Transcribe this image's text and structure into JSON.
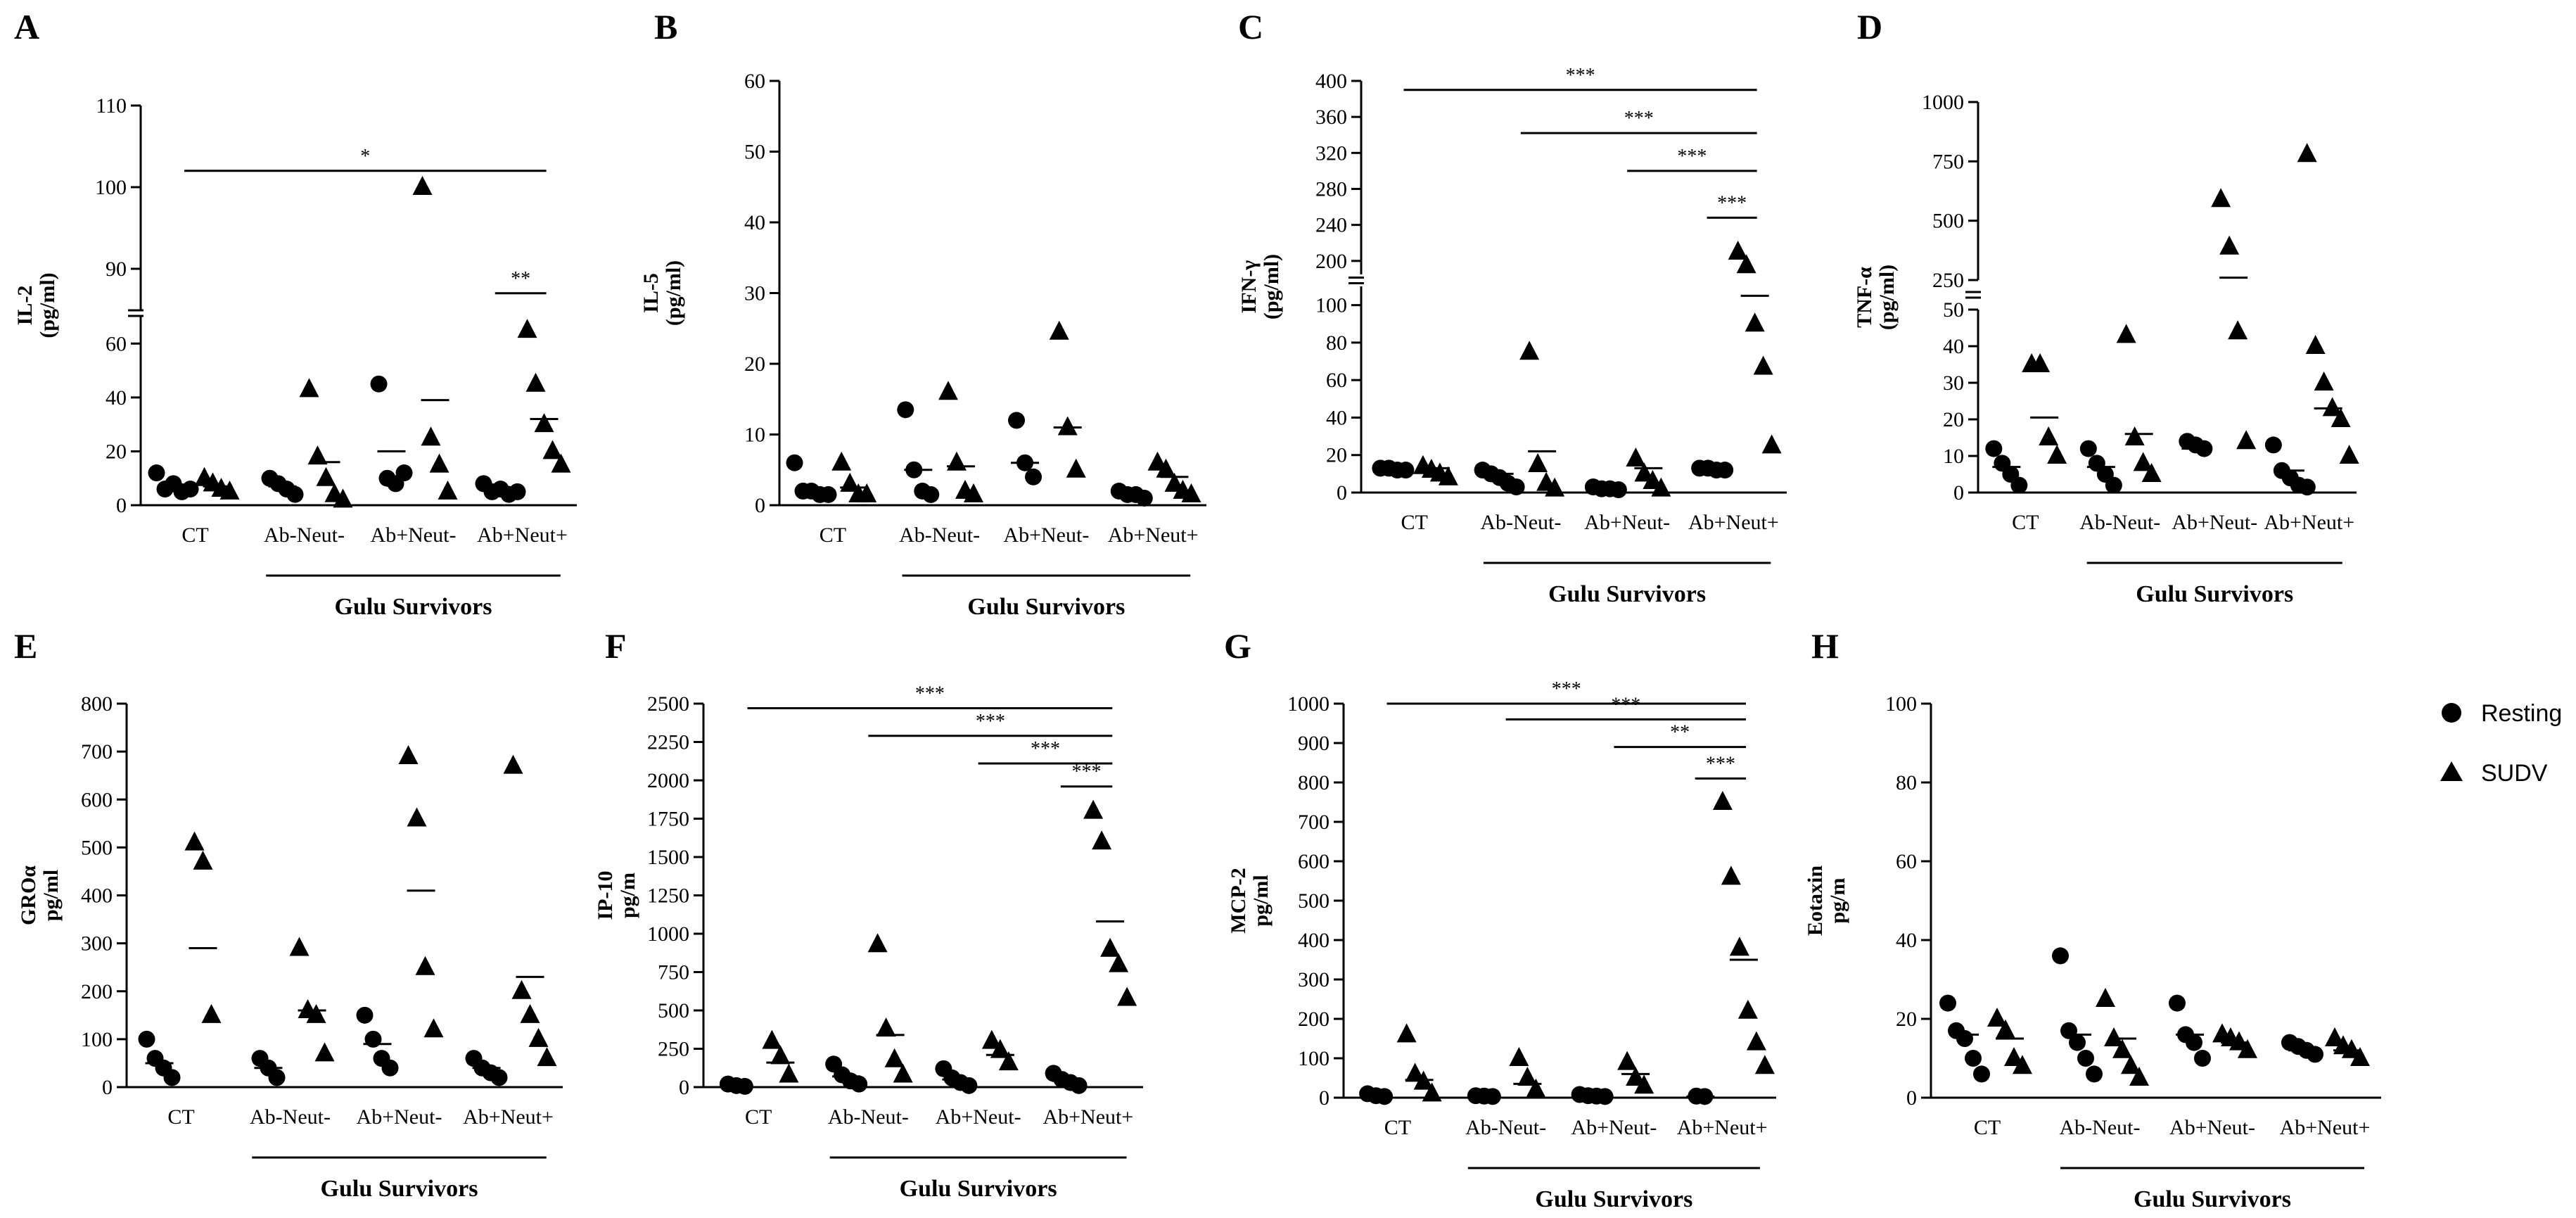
{
  "legend": {
    "resting": "Resting",
    "sudv": "SUDV",
    "resting_icon": "filled-circle-icon",
    "sudv_icon": "filled-triangle-icon"
  },
  "chart_data": [
    {
      "panel": "A",
      "type": "scatter",
      "ylabel": [
        "IL-2",
        "(pg/ml)"
      ],
      "categories": [
        "CT",
        "Ab-Neut-",
        "Ab+Neut-",
        "Ab+Neut+"
      ],
      "group_label": "Gulu Survivors",
      "broken_axis": true,
      "segments": [
        {
          "range": [
            0,
            70
          ],
          "ticks": [
            0,
            20,
            40,
            60
          ]
        },
        {
          "range": [
            85,
            110
          ],
          "ticks": [
            90,
            100,
            110
          ]
        }
      ],
      "series": [
        {
          "name": "Resting",
          "marker": "circle",
          "values": [
            [
              12,
              6,
              8,
              5,
              6
            ],
            [
              10,
              8,
              6,
              4
            ],
            [
              45,
              10,
              8,
              12
            ],
            [
              8,
              5,
              6,
              4,
              5
            ]
          ],
          "means": [
            7,
            7,
            20,
            5
          ]
        },
        {
          "name": "SUDV",
          "marker": "triangle",
          "values": [
            [
              10,
              8,
              6,
              5
            ],
            [
              43,
              18,
              10,
              4,
              2
            ],
            [
              100,
              25,
              15,
              5
            ],
            [
              65,
              45,
              30,
              20,
              15
            ]
          ],
          "means": [
            7,
            16,
            39,
            32
          ]
        }
      ],
      "significance": [
        {
          "from": 0,
          "to": 3,
          "label": "*",
          "y": 102
        },
        {
          "from": 2.75,
          "to": 3,
          "label": "**",
          "y": 87
        }
      ]
    },
    {
      "panel": "B",
      "type": "scatter",
      "ylabel": [
        "IL-5",
        "(pg/ml)"
      ],
      "categories": [
        "CT",
        "Ab-Neut-",
        "Ab+Neut-",
        "Ab+Neut+"
      ],
      "group_label": "Gulu Survivors",
      "broken_axis": false,
      "segments": [
        {
          "range": [
            0,
            60
          ],
          "ticks": [
            0,
            10,
            20,
            30,
            40,
            50,
            60
          ]
        }
      ],
      "series": [
        {
          "name": "Resting",
          "marker": "circle",
          "values": [
            [
              6,
              2,
              2,
              1.5,
              1.5
            ],
            [
              13.5,
              5,
              2,
              1.5
            ],
            [
              12,
              6,
              4
            ],
            [
              2,
              1.5,
              1.5,
              1
            ]
          ],
          "means": [
            2,
            5,
            6,
            2
          ]
        },
        {
          "name": "SUDV",
          "marker": "triangle",
          "values": [
            [
              6,
              3,
              1.5,
              1.5
            ],
            [
              16,
              6,
              2,
              1.5
            ],
            [
              24.5,
              11,
              5
            ],
            [
              6,
              5,
              3,
              2,
              1.5
            ]
          ],
          "means": [
            2.5,
            5.5,
            11,
            4
          ]
        }
      ],
      "significance": []
    },
    {
      "panel": "C",
      "type": "scatter",
      "ylabel": [
        "IFN-γ",
        "(pg/ml)"
      ],
      "categories": [
        "CT",
        "Ab-Neut-",
        "Ab+Neut-",
        "Ab+Neut+"
      ],
      "group_label": "Gulu Survivors",
      "broken_axis": true,
      "segments": [
        {
          "range": [
            0,
            110
          ],
          "ticks": [
            0,
            20,
            40,
            60,
            80,
            100
          ]
        },
        {
          "range": [
            185,
            400
          ],
          "ticks": [
            200,
            240,
            280,
            320,
            360,
            400
          ]
        }
      ],
      "series": [
        {
          "name": "Resting",
          "marker": "circle",
          "values": [
            [
              13,
              13,
              12,
              12
            ],
            [
              12,
              10,
              8,
              5,
              3
            ],
            [
              3,
              2,
              2,
              1.5
            ],
            [
              13,
              13,
              12,
              12
            ]
          ],
          "means": [
            13,
            10,
            2,
            13
          ]
        },
        {
          "name": "SUDV",
          "marker": "triangle",
          "values": [
            [
              14,
              12,
              10,
              8
            ],
            [
              75,
              15,
              5,
              2
            ],
            [
              18,
              10,
              6,
              2
            ],
            [
              210,
              195,
              90,
              67,
              25
            ]
          ],
          "means": [
            13,
            22,
            13,
            105
          ]
        }
      ],
      "significance": [
        {
          "from": 0,
          "to": 3,
          "label": "***",
          "y": 390
        },
        {
          "from": 1,
          "to": 3,
          "label": "***",
          "y": 342
        },
        {
          "from": 2,
          "to": 3,
          "label": "***",
          "y": 300
        },
        {
          "from": 2.75,
          "to": 3,
          "label": "***",
          "y": 248
        }
      ]
    },
    {
      "panel": "D",
      "type": "scatter",
      "ylabel": [
        "TNF-α",
        "(pg/ml)"
      ],
      "categories": [
        "CT",
        "Ab-Neut-",
        "Ab+Neut-",
        "Ab+Neut+"
      ],
      "group_label": "Gulu Survivors",
      "broken_axis": true,
      "segments": [
        {
          "range": [
            0,
            50
          ],
          "ticks": [
            0,
            10,
            20,
            30,
            40,
            50
          ]
        },
        {
          "range": [
            250,
            1000
          ],
          "ticks": [
            250,
            500,
            750,
            1000
          ]
        }
      ],
      "series": [
        {
          "name": "Resting",
          "marker": "circle",
          "values": [
            [
              12,
              8,
              5,
              2
            ],
            [
              12,
              8,
              5,
              2
            ],
            [
              14,
              13,
              12
            ],
            [
              13,
              6,
              4,
              2,
              1.5
            ]
          ],
          "means": [
            7,
            7,
            12,
            6
          ]
        },
        {
          "name": "SUDV",
          "marker": "triangle",
          "values": [
            [
              35,
              35,
              15,
              10
            ],
            [
              43,
              15,
              8,
              5
            ],
            [
              590,
              390,
              44,
              14
            ],
            [
              780,
              40,
              30,
              23,
              20,
              10
            ]
          ],
          "means": [
            20.5,
            16,
            260,
            23
          ]
        }
      ],
      "significance": []
    },
    {
      "panel": "E",
      "type": "scatter",
      "ylabel": [
        "GROα",
        "pg/ml"
      ],
      "categories": [
        "CT",
        "Ab-Neut-",
        "Ab+Neut-",
        "Ab+Neut+"
      ],
      "group_label": "Gulu Survivors",
      "broken_axis": false,
      "segments": [
        {
          "range": [
            0,
            800
          ],
          "ticks": [
            0,
            100,
            200,
            300,
            400,
            500,
            600,
            700,
            800
          ]
        }
      ],
      "series": [
        {
          "name": "Resting",
          "marker": "circle",
          "values": [
            [
              100,
              60,
              40,
              20
            ],
            [
              60,
              40,
              20
            ],
            [
              150,
              100,
              60,
              40
            ],
            [
              60,
              40,
              30,
              20
            ]
          ],
          "means": [
            50,
            40,
            90,
            40
          ]
        },
        {
          "name": "SUDV",
          "marker": "triangle",
          "values": [
            [
              510,
              470,
              150
            ],
            [
              290,
              160,
              150,
              70
            ],
            [
              690,
              560,
              250,
              120
            ],
            [
              670,
              200,
              150,
              100,
              60
            ]
          ],
          "means": [
            290,
            160,
            410,
            230
          ]
        }
      ],
      "significance": []
    },
    {
      "panel": "F",
      "type": "scatter",
      "ylabel": [
        "IP-10",
        "pg/m"
      ],
      "categories": [
        "CT",
        "Ab-Neut-",
        "Ab+Neut-",
        "Ab+Neut+"
      ],
      "group_label": "Gulu Survivors",
      "broken_axis": false,
      "segments": [
        {
          "range": [
            0,
            2500
          ],
          "ticks": [
            0,
            250,
            500,
            750,
            1000,
            1250,
            1500,
            1750,
            2000,
            2250,
            2500
          ]
        }
      ],
      "series": [
        {
          "name": "Resting",
          "marker": "circle",
          "values": [
            [
              20,
              10,
              5
            ],
            [
              150,
              80,
              40,
              20
            ],
            [
              120,
              60,
              30,
              10
            ],
            [
              90,
              50,
              30,
              10
            ]
          ],
          "means": [
            15,
            70,
            50,
            40
          ]
        },
        {
          "name": "SUDV",
          "marker": "triangle",
          "values": [
            [
              300,
              200,
              80
            ],
            [
              930,
              380,
              180,
              80
            ],
            [
              300,
              240,
              160
            ],
            [
              1800,
              1600,
              900,
              800,
              580
            ]
          ],
          "means": [
            160,
            340,
            210,
            1080
          ]
        }
      ],
      "significance": [
        {
          "from": 0,
          "to": 3,
          "label": "***",
          "y": 2470
        },
        {
          "from": 1,
          "to": 3,
          "label": "***",
          "y": 2290
        },
        {
          "from": 2,
          "to": 3,
          "label": "***",
          "y": 2110
        },
        {
          "from": 2.75,
          "to": 3,
          "label": "***",
          "y": 1960
        }
      ]
    },
    {
      "panel": "G",
      "type": "scatter",
      "ylabel": [
        "MCP-2",
        "pg/ml"
      ],
      "categories": [
        "CT",
        "Ab-Neut-",
        "Ab+Neut-",
        "Ab+Neut+"
      ],
      "group_label": "Gulu Survivors",
      "broken_axis": false,
      "segments": [
        {
          "range": [
            0,
            1000
          ],
          "ticks": [
            0,
            100,
            200,
            300,
            400,
            500,
            600,
            700,
            800,
            900,
            1000
          ]
        }
      ],
      "series": [
        {
          "name": "Resting",
          "marker": "circle",
          "values": [
            [
              10,
              5,
              3
            ],
            [
              5,
              4,
              3
            ],
            [
              8,
              5,
              4,
              3
            ],
            [
              4,
              3
            ]
          ],
          "means": [
            5,
            4,
            5,
            3
          ]
        },
        {
          "name": "SUDV",
          "marker": "triangle",
          "values": [
            [
              160,
              60,
              40,
              10
            ],
            [
              100,
              50,
              20
            ],
            [
              90,
              50,
              30
            ],
            [
              750,
              560,
              380,
              220,
              140,
              80
            ]
          ],
          "means": [
            45,
            35,
            60,
            350
          ]
        }
      ],
      "significance": [
        {
          "from": 0,
          "to": 3,
          "label": "***",
          "y": 1000
        },
        {
          "from": 1,
          "to": 3,
          "label": "***",
          "y": 960
        },
        {
          "from": 2,
          "to": 3,
          "label": "**",
          "y": 890
        },
        {
          "from": 2.75,
          "to": 3,
          "label": "***",
          "y": 810
        }
      ]
    },
    {
      "panel": "H",
      "type": "scatter",
      "ylabel": [
        "Eotaxin",
        "pg/m"
      ],
      "categories": [
        "CT",
        "Ab-Neut-",
        "Ab+Neut-",
        "Ab+Neut+"
      ],
      "group_label": "Gulu Survivors",
      "broken_axis": false,
      "segments": [
        {
          "range": [
            0,
            100
          ],
          "ticks": [
            0,
            20,
            40,
            60,
            80,
            100
          ]
        }
      ],
      "series": [
        {
          "name": "Resting",
          "marker": "circle",
          "values": [
            [
              24,
              17,
              15,
              10,
              6
            ],
            [
              36,
              17,
              14,
              10,
              6
            ],
            [
              24,
              16,
              14,
              10
            ],
            [
              14,
              13,
              12,
              11
            ]
          ],
          "means": [
            16,
            16,
            16,
            12
          ]
        },
        {
          "name": "SUDV",
          "marker": "triangle",
          "values": [
            [
              20,
              17,
              10,
              8
            ],
            [
              25,
              15,
              12,
              8,
              5
            ],
            [
              16,
              15,
              14,
              12
            ],
            [
              15,
              13,
              12,
              10
            ]
          ],
          "means": [
            15,
            15,
            14,
            12
          ]
        }
      ],
      "significance": []
    }
  ]
}
